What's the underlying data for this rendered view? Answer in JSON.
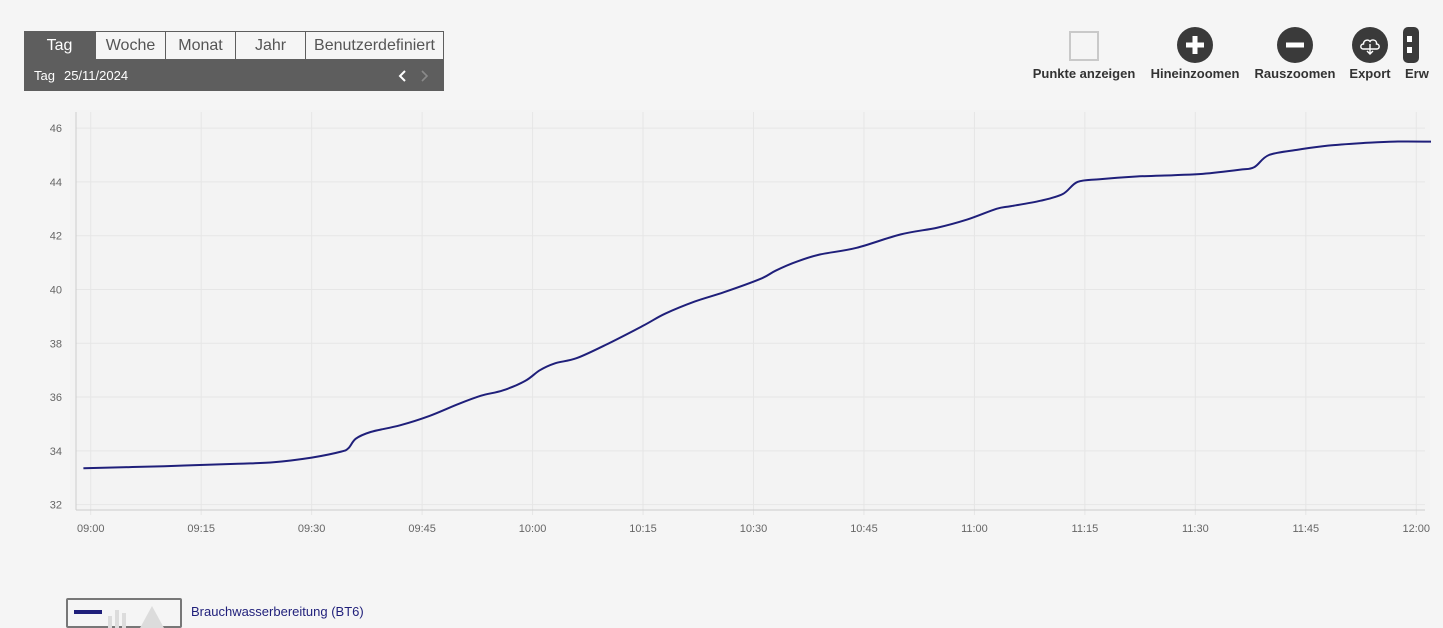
{
  "period_selector": {
    "tabs": [
      {
        "label": "Tag",
        "active": true
      },
      {
        "label": "Woche",
        "active": false
      },
      {
        "label": "Monat",
        "active": false
      },
      {
        "label": "Jahr",
        "active": false
      },
      {
        "label": "Benutzerdefiniert",
        "active": false
      }
    ],
    "date_label": "Tag",
    "date_value": "25/11/2024",
    "prev_icon": "chevron-left-icon",
    "next_icon": "chevron-right-icon"
  },
  "toolbar": {
    "show_points_label": "Punkte anzeigen",
    "show_points_checked": false,
    "zoom_in_label": "Hineinzoomen",
    "zoom_out_label": "Rauszoomen",
    "export_label": "Export",
    "more_label": "Erw"
  },
  "colors": {
    "line": "#1f1f7a",
    "selector_bg": "#5e5e5e",
    "icon_bg": "#3a3a3a",
    "grid": "#e6e6e6"
  },
  "chart_data": {
    "type": "line",
    "x_unit": "time",
    "xlim": [
      "08:58",
      "12:02"
    ],
    "ylim": [
      31.8,
      46.6
    ],
    "x_ticks": [
      "09:00",
      "09:15",
      "09:30",
      "09:45",
      "10:00",
      "10:15",
      "10:30",
      "10:45",
      "11:00",
      "11:15",
      "11:30",
      "11:45",
      "12:00"
    ],
    "y_ticks": [
      32,
      34,
      36,
      38,
      40,
      42,
      44,
      46
    ],
    "grid": true,
    "series": [
      {
        "name": "Brauchwasserbereitung (BT6)",
        "color": "#1f1f7a",
        "points": [
          [
            "08:59",
            33.35
          ],
          [
            "09:10",
            33.43
          ],
          [
            "09:20",
            33.52
          ],
          [
            "09:25",
            33.58
          ],
          [
            "09:30",
            33.75
          ],
          [
            "09:34",
            33.97
          ],
          [
            "09:35",
            34.1
          ],
          [
            "09:36",
            34.45
          ],
          [
            "09:38",
            34.7
          ],
          [
            "09:42",
            34.95
          ],
          [
            "09:46",
            35.3
          ],
          [
            "09:50",
            35.75
          ],
          [
            "09:53",
            36.05
          ],
          [
            "09:56",
            36.25
          ],
          [
            "09:59",
            36.6
          ],
          [
            "10:01",
            37.0
          ],
          [
            "10:03",
            37.25
          ],
          [
            "10:06",
            37.45
          ],
          [
            "10:10",
            37.95
          ],
          [
            "10:15",
            38.65
          ],
          [
            "10:18",
            39.1
          ],
          [
            "10:22",
            39.55
          ],
          [
            "10:26",
            39.9
          ],
          [
            "10:31",
            40.4
          ],
          [
            "10:33",
            40.7
          ],
          [
            "10:36",
            41.05
          ],
          [
            "10:39",
            41.3
          ],
          [
            "10:44",
            41.55
          ],
          [
            "10:50",
            42.05
          ],
          [
            "10:55",
            42.3
          ],
          [
            "10:59",
            42.6
          ],
          [
            "11:03",
            43.0
          ],
          [
            "11:05",
            43.1
          ],
          [
            "11:09",
            43.3
          ],
          [
            "11:12",
            43.55
          ],
          [
            "11:14",
            44.0
          ],
          [
            "11:17",
            44.1
          ],
          [
            "11:22",
            44.2
          ],
          [
            "11:27",
            44.25
          ],
          [
            "11:31",
            44.3
          ],
          [
            "11:36",
            44.45
          ],
          [
            "11:38",
            44.55
          ],
          [
            "11:40",
            45.0
          ],
          [
            "11:44",
            45.2
          ],
          [
            "11:48",
            45.35
          ],
          [
            "11:53",
            45.45
          ],
          [
            "11:57",
            45.5
          ],
          [
            "12:02",
            45.5
          ]
        ]
      }
    ],
    "legend_position": "bottom-left"
  }
}
